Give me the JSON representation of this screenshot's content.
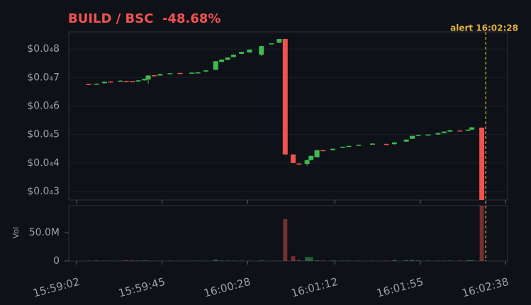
{
  "chart_data": {
    "type": "candlestick",
    "title": "BUILD / BSC  -48.68%",
    "up_color": "#3fb950",
    "down_color": "#f0524f",
    "x": [
      "15:59:08",
      "15:59:12",
      "15:59:16",
      "15:59:19",
      "15:59:24",
      "15:59:27",
      "15:59:30",
      "15:59:33",
      "15:59:36",
      "15:59:38",
      "15:59:41",
      "15:59:44",
      "15:59:49",
      "15:59:54",
      "16:00:00",
      "16:00:03",
      "16:00:07",
      "16:00:12",
      "16:00:15",
      "16:00:18",
      "16:00:21",
      "16:00:25",
      "16:00:29",
      "16:00:35",
      "16:00:40",
      "16:00:44",
      "16:00:47",
      "16:00:51",
      "16:00:54",
      "16:00:58",
      "16:01:00",
      "16:01:03",
      "16:01:06",
      "16:01:11",
      "16:01:16",
      "16:01:19",
      "16:01:24",
      "16:01:31",
      "16:01:38",
      "16:01:42",
      "16:01:48",
      "16:01:51",
      "16:01:54",
      "16:01:59",
      "16:02:04",
      "16:02:07",
      "16:02:10",
      "16:02:15",
      "16:02:19",
      "16:02:21",
      "16:02:26"
    ],
    "open": [
      6.77e-06,
      6.75e-06,
      6.8e-06,
      6.86e-06,
      6.86e-06,
      6.88e-06,
      6.87e-06,
      6.86e-06,
      6.9e-06,
      6.93e-06,
      7.08e-06,
      7.07e-06,
      7.14e-06,
      7.16e-06,
      7.16e-06,
      7.18e-06,
      7.21e-06,
      7.27e-06,
      7.55e-06,
      7.62e-06,
      7.72e-06,
      7.83e-06,
      7.88e-06,
      7.8e-06,
      8.2e-06,
      8.22e-06,
      8.35e-06,
      4.3e-06,
      3.98e-06,
      3.97e-06,
      4.1e-06,
      4.2e-06,
      4.45e-06,
      4.45e-06,
      4.55e-06,
      4.57e-06,
      4.62e-06,
      4.65e-06,
      4.67e-06,
      4.66e-06,
      4.75e-06,
      4.85e-06,
      4.96e-06,
      4.98e-06,
      5e-06,
      5.05e-06,
      5.1e-06,
      5.14e-06,
      5.13e-06,
      5.17e-06,
      5.24e-06
    ],
    "high": [
      6.78e-06,
      6.79e-06,
      6.86e-06,
      6.87e-06,
      6.9e-06,
      6.89e-06,
      6.88e-06,
      6.91e-06,
      6.96e-06,
      7.08e-06,
      7.09e-06,
      7.13e-06,
      7.16e-06,
      7.17e-06,
      7.18e-06,
      7.19e-06,
      7.26e-06,
      7.58e-06,
      7.64e-06,
      7.71e-06,
      7.81e-06,
      7.91e-06,
      7.99e-06,
      8.12e-06,
      8.21e-06,
      8.36e-06,
      8.36e-06,
      4.31e-06,
      3.99e-06,
      4.11e-06,
      4.26e-06,
      4.46e-06,
      4.46e-06,
      4.51e-06,
      4.58e-06,
      4.61e-06,
      4.65e-06,
      4.69e-06,
      4.68e-06,
      4.73e-06,
      4.83e-06,
      4.96e-06,
      4.99e-06,
      5.01e-06,
      5.06e-06,
      5.11e-06,
      5.16e-06,
      5.15e-06,
      5.18e-06,
      5.26e-06,
      5.25e-06
    ],
    "low": [
      6.75e-06,
      6.74e-06,
      6.79e-06,
      6.84e-06,
      6.85e-06,
      6.86e-06,
      6.84e-06,
      6.85e-06,
      6.89e-06,
      6.78e-06,
      7.06e-06,
      7.06e-06,
      7.13e-06,
      7.14e-06,
      7.15e-06,
      7.17e-06,
      7.2e-06,
      7.26e-06,
      7.54e-06,
      7.61e-06,
      7.71e-06,
      7.82e-06,
      7.87e-06,
      7.75e-06,
      8.19e-06,
      8.21e-06,
      4.29e-06,
      3.99e-06,
      3.95e-06,
      3.9e-06,
      4.09e-06,
      4.19e-06,
      4.43e-06,
      4.44e-06,
      4.54e-06,
      4.56e-06,
      4.61e-06,
      4.64e-06,
      4.64e-06,
      4.65e-06,
      4.74e-06,
      4.84e-06,
      4.95e-06,
      4.97e-06,
      4.99e-06,
      5.04e-06,
      5.09e-06,
      5.12e-06,
      5.12e-06,
      5.16e-06,
      2.6e-06
    ],
    "close": [
      6.75e-06,
      6.78e-06,
      6.85e-06,
      6.85e-06,
      6.89e-06,
      6.87e-06,
      6.85e-06,
      6.9e-06,
      6.95e-06,
      7.07e-06,
      7.07e-06,
      7.12e-06,
      7.15e-06,
      7.15e-06,
      7.17e-06,
      7.18e-06,
      7.25e-06,
      7.57e-06,
      7.63e-06,
      7.7e-06,
      7.8e-06,
      7.9e-06,
      7.98e-06,
      8.1e-06,
      8.2e-06,
      8.35e-06,
      4.3e-06,
      4e-06,
      3.96e-06,
      4.1e-06,
      4.25e-06,
      4.45e-06,
      4.44e-06,
      4.5e-06,
      4.57e-06,
      4.6e-06,
      4.64e-06,
      4.68e-06,
      4.65e-06,
      4.72e-06,
      4.82e-06,
      4.95e-06,
      4.98e-06,
      5e-06,
      5.05e-06,
      5.1e-06,
      5.15e-06,
      5.13e-06,
      5.17e-06,
      5.25e-06,
      2.68e-06
    ],
    "xlim": [
      "15:58:58",
      "16:02:39"
    ],
    "xticks": [
      "15:59:02",
      "15:59:45",
      "16:00:28",
      "16:01:12",
      "16:01:55",
      "16:02:38"
    ],
    "ylim": [
      2.7e-06,
      8.6e-06
    ],
    "yticks": [
      {
        "value": 3e-06,
        "label": "$0.0₄3"
      },
      {
        "value": 4e-06,
        "label": "$0.0₄4"
      },
      {
        "value": 5e-06,
        "label": "$0.0₄5"
      },
      {
        "value": 6e-06,
        "label": "$0.0₄6"
      },
      {
        "value": 7e-06,
        "label": "$0.0₄7"
      },
      {
        "value": 8e-06,
        "label": "$0.0₄8"
      }
    ],
    "grid": true,
    "annotation": {
      "label": "alert 16:02:28",
      "x": "16:02:28",
      "color": "#e3b341"
    },
    "volume": {
      "label": "Vol",
      "values": [
        400000,
        900000,
        600000,
        300000,
        500000,
        1200000,
        1000000,
        800000,
        900000,
        700000,
        300000,
        400000,
        500000,
        300000,
        400000,
        600000,
        300000,
        2600000,
        800000,
        700000,
        500000,
        600000,
        400000,
        900000,
        300000,
        500000,
        74000000,
        8500000,
        1500000,
        7200000,
        6800000,
        1200000,
        800000,
        900000,
        600000,
        700000,
        500000,
        400000,
        600000,
        1800000,
        1500000,
        2100000,
        900000,
        600000,
        500000,
        400000,
        800000,
        700000,
        1100000,
        1500000,
        100000000
      ],
      "ylim": [
        0,
        97500000
      ],
      "yticks": [
        0,
        {
          "value": 50000000,
          "label": "50.0M"
        }
      ]
    }
  }
}
